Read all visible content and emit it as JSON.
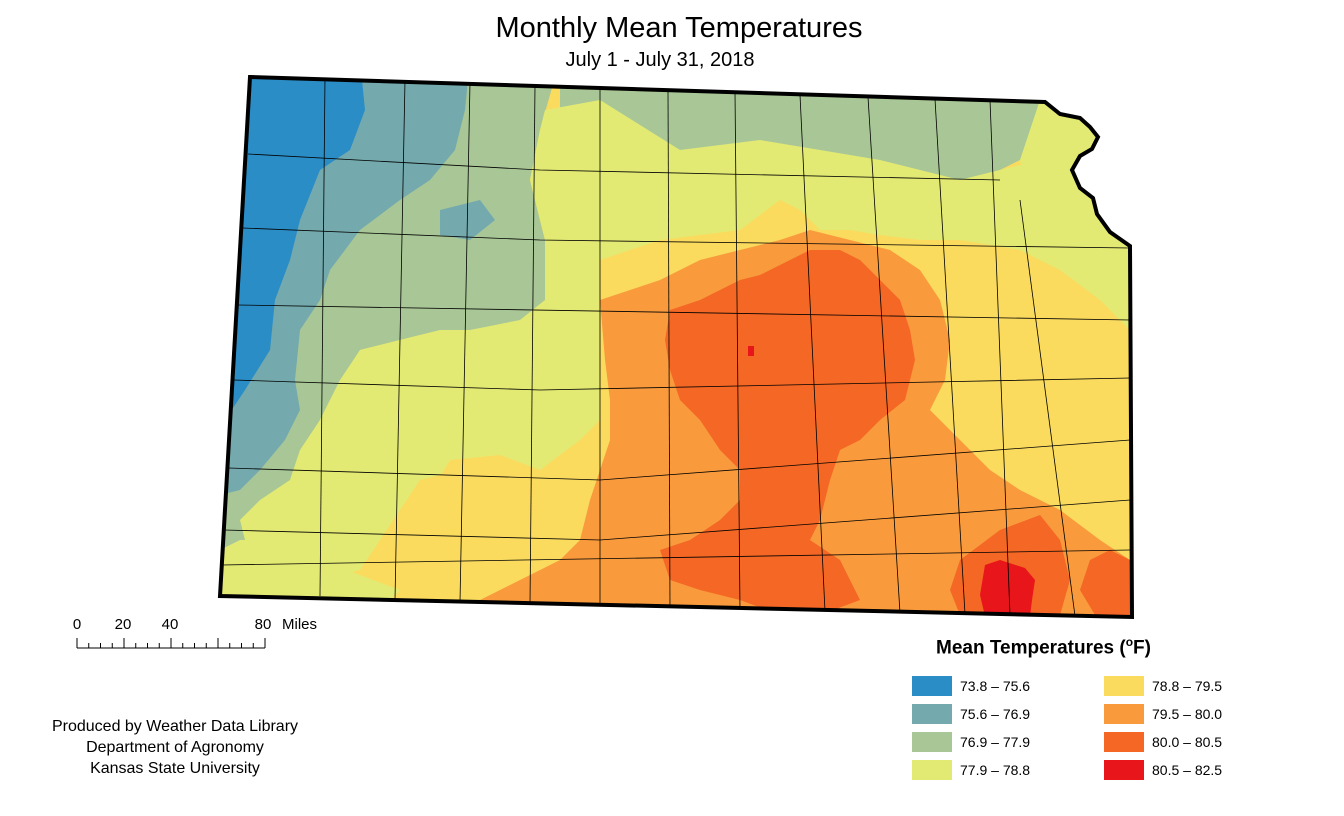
{
  "title": "Monthly Mean Temperatures",
  "subtitle": "July 1 - July 31, 2018",
  "legend": {
    "title_main": "Mean Temperatures (",
    "title_unit_sup": "o",
    "title_unit": "F)",
    "items": [
      {
        "label": "73.8 – 75.6",
        "color": "#2b8dc6"
      },
      {
        "label": "75.6 – 76.9",
        "color": "#74aaad"
      },
      {
        "label": "76.9 – 77.9",
        "color": "#a9c796"
      },
      {
        "label": "77.9 – 78.8",
        "color": "#e3ea73"
      },
      {
        "label": "78.8 – 79.5",
        "color": "#fadb5e"
      },
      {
        "label": "79.5 – 80.0",
        "color": "#f99b3c"
      },
      {
        "label": "80.0 – 80.5",
        "color": "#f46724"
      },
      {
        "label": "80.5 – 82.5",
        "color": "#e8151a"
      }
    ]
  },
  "scale_bar": {
    "labels": [
      "0",
      "20",
      "40",
      "80"
    ],
    "unit": "Miles"
  },
  "credits": [
    "Produced by Weather Data Library",
    "Department of Agronomy",
    "Kansas State University"
  ]
}
